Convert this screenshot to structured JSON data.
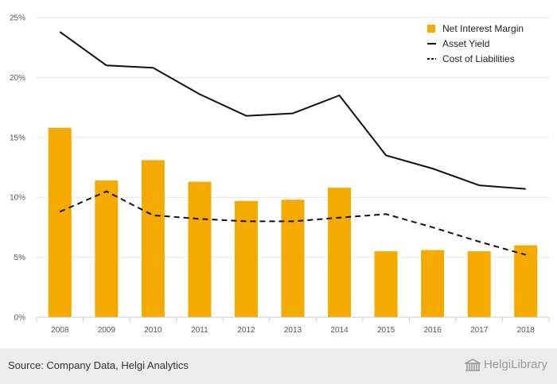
{
  "chart_data": {
    "type": "bar",
    "categories": [
      "2008",
      "2009",
      "2010",
      "2011",
      "2012",
      "2013",
      "2014",
      "2015",
      "2016",
      "2017",
      "2018"
    ],
    "ylim": [
      0,
      25
    ],
    "yticks": [
      0,
      5,
      10,
      15,
      20,
      25
    ],
    "ytick_labels": [
      "0%",
      "5%",
      "10%",
      "15%",
      "20%",
      "25%"
    ],
    "title": "",
    "xlabel": "",
    "ylabel": "",
    "grid": true,
    "legend_position": "top-right",
    "series": [
      {
        "name": "Net Interest Margin",
        "kind": "bar",
        "color": "#f5aa00",
        "values": [
          15.8,
          11.4,
          13.1,
          11.3,
          9.7,
          9.8,
          10.8,
          5.5,
          5.6,
          5.5,
          6.0
        ]
      },
      {
        "name": "Asset Yield",
        "kind": "line",
        "style": "solid",
        "color": "#111111",
        "values": [
          23.8,
          21.0,
          20.8,
          18.6,
          16.8,
          17.0,
          18.5,
          13.5,
          12.4,
          11.0,
          10.7
        ]
      },
      {
        "name": "Cost of Liabilities",
        "kind": "line",
        "style": "dashed",
        "color": "#111111",
        "values": [
          8.8,
          10.5,
          8.5,
          8.2,
          8.0,
          8.0,
          8.3,
          8.6,
          7.5,
          6.3,
          5.2
        ]
      }
    ]
  },
  "footer": {
    "source": "Source: Company Data, Helgi Analytics",
    "brand": "HelgiLibrary",
    "brand_icon": "library-building-icon"
  }
}
